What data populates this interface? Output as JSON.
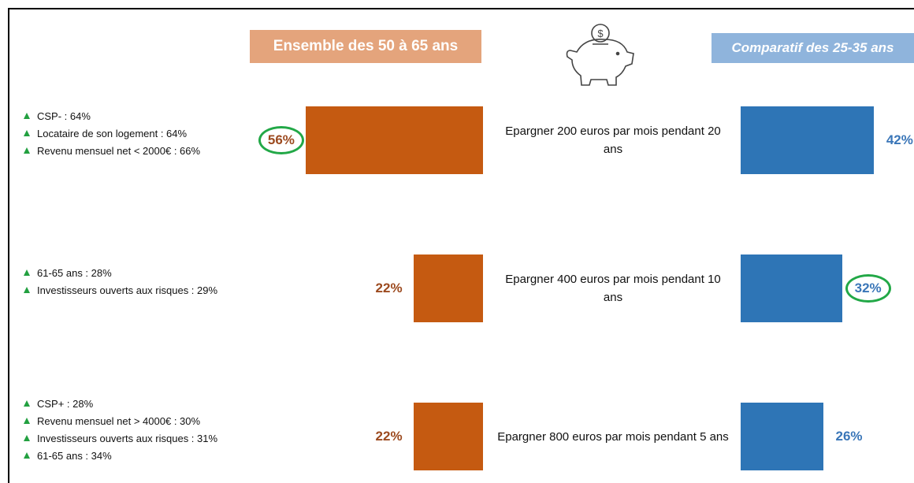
{
  "chart_data": {
    "type": "butterfly-bar",
    "categories": [
      "Epargner 200 euros par mois pendant 20 ans",
      "Epargner 400 euros par mois pendant 10 ans",
      "Epargner 800 euros par mois pendant 5 ans"
    ],
    "series": [
      {
        "name": "Ensemble des 50 à 65 ans",
        "color": "#c55a11",
        "header_color": "#e4a47c",
        "label_color": "#9c4a1f",
        "values": [
          56,
          22,
          22
        ],
        "value_labels": [
          "56%",
          "22%",
          "22%"
        ],
        "circled": [
          true,
          false,
          false
        ]
      },
      {
        "name": "Comparatif des 25-35 ans",
        "color": "#2e75b6",
        "header_color": "#8fb4dc",
        "label_color": "#3a76b8",
        "values": [
          42,
          32,
          26
        ],
        "value_labels": [
          "42%",
          "32%",
          "26%"
        ],
        "circled": [
          false,
          true,
          false
        ]
      }
    ],
    "notes": [
      [
        "CSP- : 64%",
        "Locataire de son logement : 64%",
        "Revenu mensuel net < 2000€  : 66%"
      ],
      [
        "61-65 ans : 28%",
        "Investisseurs ouverts aux risques : 29%"
      ],
      [
        "CSP+ : 28%",
        "Revenu mensuel net > 4000€ : 30%",
        "Investisseurs ouverts aux risques : 31%",
        "61-65 ans : 34%"
      ]
    ]
  }
}
